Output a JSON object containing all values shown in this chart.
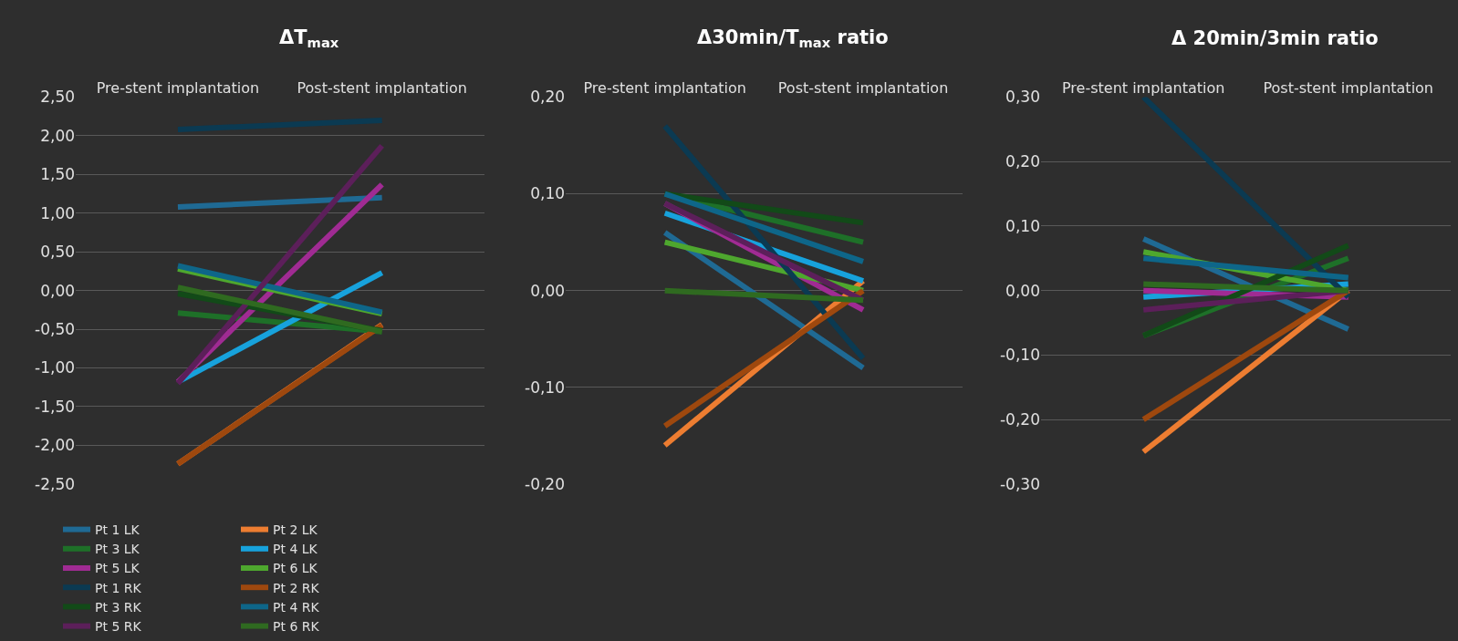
{
  "chart_data": [
    {
      "type": "line",
      "title": "ΔT$_{max}$",
      "categories": [
        "Pre-stent implantation",
        "Post-stent implantation"
      ],
      "ylim": [
        -2.5,
        2.5
      ],
      "yticks": [
        {
          "value": -2.5,
          "label": "-2,50"
        },
        {
          "value": -2,
          "label": "-2,00"
        },
        {
          "value": -1.5,
          "label": "-1,50"
        },
        {
          "value": -1,
          "label": "-1,00"
        },
        {
          "value": -0.5,
          "label": "-0,50"
        },
        {
          "value": 0,
          "label": "0,00"
        },
        {
          "value": 0.5,
          "label": "0,50"
        },
        {
          "value": 1,
          "label": "1,00"
        },
        {
          "value": 1.5,
          "label": "1,50"
        },
        {
          "value": 2,
          "label": "2,00"
        },
        {
          "value": 2.5,
          "label": "2,50"
        }
      ],
      "grid": "y",
      "legend": "bottom",
      "series": [
        {
          "name": "Pt 1 LK",
          "color": "#1f6a94",
          "values": [
            1.08,
            1.2
          ]
        },
        {
          "name": "Pt 2 LK",
          "color": "#ed7d31",
          "values": [
            -2.24,
            -0.44
          ]
        },
        {
          "name": "Pt 3 LK",
          "color": "#1e7028",
          "values": [
            -0.29,
            -0.53
          ]
        },
        {
          "name": "Pt 4 LK",
          "color": "#17a2dc",
          "values": [
            -1.18,
            0.23
          ]
        },
        {
          "name": "Pt 5 LK",
          "color": "#a02b93",
          "values": [
            -1.18,
            1.37
          ]
        },
        {
          "name": "Pt 6 LK",
          "color": "#4ea72e",
          "values": [
            0.28,
            -0.3
          ]
        },
        {
          "name": "Pt 1 RK",
          "color": "#0b3a52",
          "values": [
            2.08,
            2.2
          ]
        },
        {
          "name": "Pt 2 RK",
          "color": "#9e480e",
          "values": [
            -2.24,
            -0.45
          ]
        },
        {
          "name": "Pt 3 RK",
          "color": "#124a18",
          "values": [
            -0.04,
            -0.52
          ]
        },
        {
          "name": "Pt 4 RK",
          "color": "#0e6689",
          "values": [
            0.32,
            -0.28
          ]
        },
        {
          "name": "Pt 5 RK",
          "color": "#5c1f5a",
          "values": [
            -1.2,
            1.87
          ]
        },
        {
          "name": "Pt 6 RK",
          "color": "#2f6a20",
          "values": [
            0.04,
            -0.53
          ]
        }
      ]
    },
    {
      "type": "line",
      "title": "Δ30min/T$_{max}$ ratio",
      "categories": [
        "Pre-stent implantation",
        "Post-stent implantation"
      ],
      "ylim": [
        -0.2,
        0.2
      ],
      "yticks": [
        {
          "value": -0.2,
          "label": "-0,20"
        },
        {
          "value": -0.1,
          "label": "-0,10"
        },
        {
          "value": 0,
          "label": "0,00"
        },
        {
          "value": 0.1,
          "label": "0,10"
        },
        {
          "value": 0.2,
          "label": "0,20"
        }
      ],
      "grid": "y",
      "legend": "bottom",
      "series": [
        {
          "name": "Pt 1 LK",
          "color": "#1f6a94",
          "values": [
            0.06,
            -0.08
          ]
        },
        {
          "name": "Pt 2 LK",
          "color": "#ed7d31",
          "values": [
            -0.16,
            0.01
          ]
        },
        {
          "name": "Pt 3 LK",
          "color": "#1e7028",
          "values": [
            0.1,
            0.05
          ]
        },
        {
          "name": "Pt 4 LK",
          "color": "#17a2dc",
          "values": [
            0.08,
            0.01
          ]
        },
        {
          "name": "Pt 5 LK",
          "color": "#a02b93",
          "values": [
            0.09,
            -0.02
          ]
        },
        {
          "name": "Pt 6 LK",
          "color": "#4ea72e",
          "values": [
            0.05,
            0.0
          ]
        },
        {
          "name": "Pt 1 RK",
          "color": "#0b3a52",
          "values": [
            0.17,
            -0.07
          ]
        },
        {
          "name": "Pt 2 RK",
          "color": "#9e480e",
          "values": [
            -0.14,
            0.0
          ]
        },
        {
          "name": "Pt 3 RK",
          "color": "#124a18",
          "values": [
            0.1,
            0.07
          ]
        },
        {
          "name": "Pt 4 RK",
          "color": "#0e6689",
          "values": [
            0.1,
            0.03
          ]
        },
        {
          "name": "Pt 5 RK",
          "color": "#5c1f5a",
          "values": [
            0.09,
            -0.01
          ]
        },
        {
          "name": "Pt 6 RK",
          "color": "#2f6a20",
          "values": [
            0.0,
            -0.01
          ]
        }
      ]
    },
    {
      "type": "line",
      "title": "Δ 20min/3min ratio",
      "categories": [
        "Pre-stent implantation",
        "Post-stent implantation"
      ],
      "ylim": [
        -0.3,
        0.3
      ],
      "yticks": [
        {
          "value": -0.3,
          "label": "-0,30"
        },
        {
          "value": -0.2,
          "label": "-0,20"
        },
        {
          "value": -0.1,
          "label": "-0,10"
        },
        {
          "value": 0,
          "label": "0,00"
        },
        {
          "value": 0.1,
          "label": "0,10"
        },
        {
          "value": 0.2,
          "label": "0,20"
        },
        {
          "value": 0.3,
          "label": "0,30"
        }
      ],
      "grid": "y",
      "legend": "bottom",
      "series": [
        {
          "name": "Pt 1 LK",
          "color": "#1f6a94",
          "values": [
            0.08,
            -0.06
          ]
        },
        {
          "name": "Pt 2 LK",
          "color": "#ed7d31",
          "values": [
            -0.25,
            0.0
          ]
        },
        {
          "name": "Pt 3 LK",
          "color": "#1e7028",
          "values": [
            -0.07,
            0.05
          ]
        },
        {
          "name": "Pt 4 LK",
          "color": "#17a2dc",
          "values": [
            -0.01,
            0.01
          ]
        },
        {
          "name": "Pt 5 LK",
          "color": "#a02b93",
          "values": [
            0.0,
            -0.01
          ]
        },
        {
          "name": "Pt 6 LK",
          "color": "#4ea72e",
          "values": [
            0.06,
            0.0
          ]
        },
        {
          "name": "Pt 1 RK",
          "color": "#0b3a52",
          "values": [
            0.3,
            -0.01
          ]
        },
        {
          "name": "Pt 2 RK",
          "color": "#9e480e",
          "values": [
            -0.2,
            0.0
          ]
        },
        {
          "name": "Pt 3 RK",
          "color": "#124a18",
          "values": [
            -0.07,
            0.07
          ]
        },
        {
          "name": "Pt 4 RK",
          "color": "#0e6689",
          "values": [
            0.05,
            0.02
          ]
        },
        {
          "name": "Pt 5 RK",
          "color": "#5c1f5a",
          "values": [
            -0.03,
            0.0
          ]
        },
        {
          "name": "Pt 6 RK",
          "color": "#2f6a20",
          "values": [
            0.01,
            0.0
          ]
        }
      ]
    }
  ]
}
